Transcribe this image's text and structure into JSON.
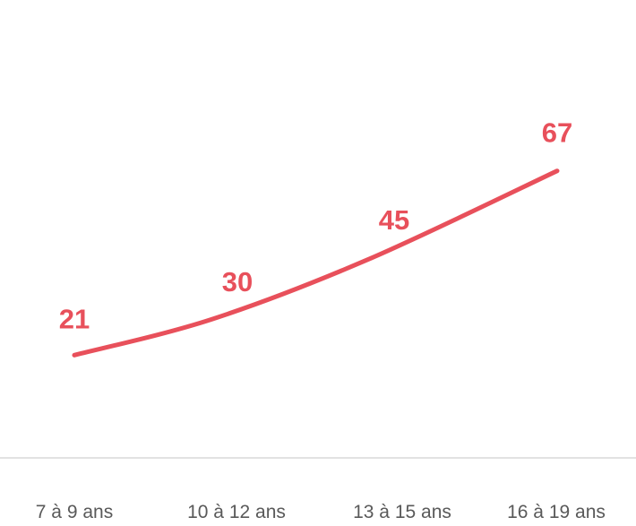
{
  "chart_data": {
    "type": "line",
    "title": "",
    "xlabel": "",
    "ylabel": "",
    "categories": [
      "7 à 9 ans",
      "10 à 12 ans",
      "13 à 15 ans",
      "16 à 19 ans"
    ],
    "series": [
      {
        "values": [
          21,
          30,
          45,
          67
        ],
        "color": "#E8505B"
      }
    ],
    "ylim": [
      0,
      70
    ],
    "grid": false,
    "legend": "none",
    "smooth": true,
    "data_labels": true,
    "axis_line_color": "#D9D9D9",
    "tick_label_color": "#595959"
  }
}
